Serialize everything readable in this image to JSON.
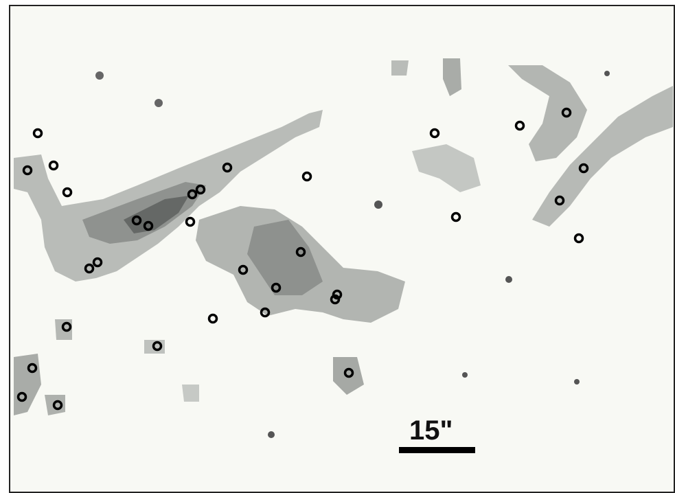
{
  "scale_bar": {
    "label": "15\""
  }
}
